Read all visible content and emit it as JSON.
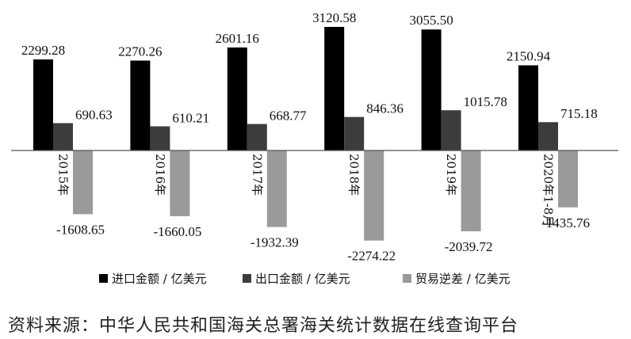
{
  "chart_data": {
    "type": "bar",
    "categories": [
      "2015年",
      "2016年",
      "2017年",
      "2018年",
      "2019年",
      "2020年1-8月"
    ],
    "series": [
      {
        "name": "进口金额 / 亿美元",
        "color": "#000000",
        "values": [
          2299.28,
          2270.26,
          2601.16,
          3120.58,
          3055.5,
          2150.94
        ]
      },
      {
        "name": "出口金额 / 亿美元",
        "color": "#3c3c3c",
        "values": [
          690.63,
          610.21,
          668.77,
          846.36,
          1015.78,
          715.18
        ]
      },
      {
        "name": "贸易逆差 / 亿美元",
        "color": "#9a9a9a",
        "values": [
          -1608.65,
          -1660.05,
          -1932.39,
          -2274.22,
          -2039.72,
          -1435.76
        ]
      }
    ],
    "value_labels": [
      [
        "2299.28",
        "2270.26",
        "2601.16",
        "3120.58",
        "3055.50",
        "2150.94"
      ],
      [
        "690.63",
        "610.21",
        "668.77",
        "846.36",
        "1015.78",
        "715.18"
      ],
      [
        "-1608.65",
        "-1660.05",
        "-1932.39",
        "-2274.22",
        "-2039.72",
        "-1435.76"
      ]
    ],
    "legend_position": "bottom",
    "grid": false
  },
  "source_text": "资料来源：中华人民共和国海关总署海关统计数据在线查询平台"
}
